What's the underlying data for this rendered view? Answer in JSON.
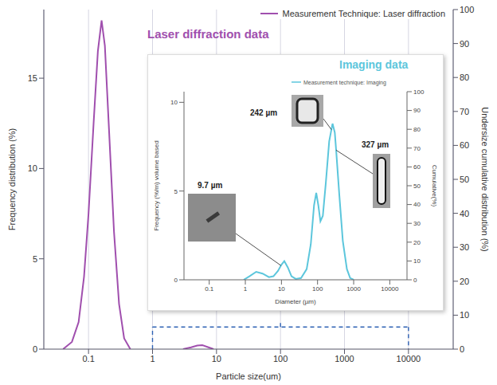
{
  "chart_data": [
    {
      "type": "line",
      "title": "Laser diffraction data",
      "log": "x",
      "grid": true,
      "legend": "upper right",
      "xlabel": "Particle size(um)",
      "ylabel": "Frequency distribution (%)",
      "y2label": "Undersize cumulative distribution (%)",
      "x": [
        0.04,
        0.055,
        0.07,
        0.085,
        0.1,
        0.12,
        0.14,
        0.16,
        0.18,
        0.21,
        0.25,
        0.3,
        0.36,
        0.45,
        1,
        3,
        4,
        5,
        6,
        7.5,
        9
      ],
      "series": [
        {
          "name": "Measurement Technique: Laser diffraction",
          "color": "#a04fae",
          "values": [
            0,
            0.4,
            1.5,
            4,
            7.5,
            12.5,
            16.5,
            18.2,
            16.8,
            12,
            6.5,
            2.5,
            0.6,
            0,
            null,
            0,
            0.1,
            0.2,
            0.22,
            0.1,
            0
          ]
        }
      ],
      "xlim": [
        0.02,
        50000
      ],
      "xticks": [
        0.1,
        1,
        10,
        100,
        1000,
        10000
      ],
      "ylim": [
        0,
        18.8
      ],
      "yticks": [
        0,
        5,
        10,
        15
      ],
      "y2lim": [
        0,
        100
      ],
      "y2ticks": [
        0,
        10,
        20,
        30,
        40,
        50,
        60,
        70,
        80,
        90,
        100
      ],
      "inset_range": [
        1,
        10000
      ]
    },
    {
      "type": "line",
      "title": "Imaging data",
      "log": "x",
      "grid": false,
      "legend": "upper right",
      "xlabel": "Diameter (µm)",
      "ylabel": "Frequency (%/m) volume based",
      "y2label": "Cumulative(%)",
      "x": [
        0.9,
        1.3,
        2,
        3,
        4.5,
        6,
        8,
        10,
        12,
        15,
        19,
        25,
        35,
        50,
        65,
        80,
        92,
        105,
        120,
        140,
        170,
        210,
        260,
        300,
        330,
        400,
        500,
        650,
        800,
        1000
      ],
      "series": [
        {
          "name": "Measurement technique: Imaging",
          "color": "#5cc6dc",
          "values": [
            0,
            0.2,
            0.45,
            0.35,
            0.15,
            0.2,
            0.5,
            0.85,
            1.05,
            0.7,
            0.2,
            0.05,
            0.1,
            0.6,
            2,
            4.2,
            4.9,
            4.2,
            3.3,
            3.6,
            5.5,
            7.8,
            8.8,
            8.3,
            7.2,
            4.8,
            2.2,
            0.6,
            0.1,
            0
          ]
        }
      ],
      "xlim": [
        0.02,
        30000
      ],
      "xticks": [
        0.1,
        1,
        10,
        100,
        1000,
        10000
      ],
      "ylim": [
        0,
        10.6
      ],
      "yticks": [
        0,
        5,
        10
      ],
      "y2lim": [
        0,
        100
      ],
      "y2ticks": [
        0,
        10,
        20,
        30,
        40,
        50,
        60,
        70,
        80,
        90,
        100
      ],
      "annotations": [
        {
          "text": "9.7 µm",
          "x": 9.7
        },
        {
          "text": "242 µm",
          "x": 242
        },
        {
          "text": "327 µm",
          "x": 327
        }
      ]
    }
  ]
}
